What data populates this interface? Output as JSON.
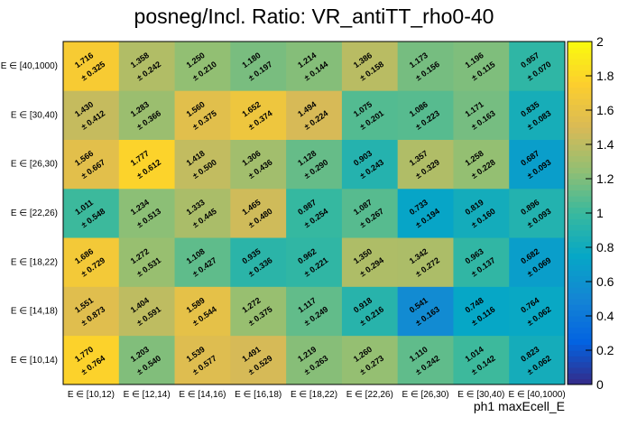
{
  "chart_data": {
    "type": "heatmap",
    "title": "posneg/Incl. Ratio: VR_antiTT_rho0-40",
    "xlabel": "ph1 maxEcell_E",
    "ylabel": "",
    "x_categories": [
      "E ∈ [10,12)",
      "E ∈ [12,14)",
      "E ∈ [14,16)",
      "E ∈ [16,18)",
      "E ∈ [18,22)",
      "E ∈ [22,26)",
      "E ∈ [26,30)",
      "E ∈ [30,40)",
      "E ∈ [40,1000)"
    ],
    "y_categories": [
      "E ∈ [10,14)",
      "E ∈ [14,18)",
      "E ∈ [18,22)",
      "E ∈ [22,26)",
      "E ∈ [26,30)",
      "E ∈ [30,40)",
      "E ∈ [40,1000)"
    ],
    "values": [
      [
        1.77,
        1.203,
        1.539,
        1.491,
        1.219,
        1.26,
        1.11,
        1.014,
        0.823
      ],
      [
        1.551,
        1.404,
        1.589,
        1.272,
        1.117,
        0.918,
        0.541,
        0.748,
        0.764
      ],
      [
        1.686,
        1.272,
        1.108,
        0.935,
        0.962,
        1.35,
        1.342,
        0.963,
        0.682
      ],
      [
        1.011,
        1.234,
        1.333,
        1.465,
        0.987,
        1.087,
        0.733,
        0.819,
        0.896
      ],
      [
        1.566,
        1.777,
        1.418,
        1.306,
        1.128,
        0.903,
        1.357,
        1.258,
        0.687
      ],
      [
        1.43,
        1.283,
        1.56,
        1.652,
        1.494,
        1.075,
        1.086,
        1.171,
        0.835
      ],
      [
        1.716,
        1.358,
        1.25,
        1.18,
        1.214,
        1.386,
        1.173,
        1.196,
        0.957
      ]
    ],
    "errors": [
      [
        0.764,
        0.54,
        0.577,
        0.529,
        0.263,
        0.273,
        0.242,
        0.142,
        0.062
      ],
      [
        0.873,
        0.591,
        0.544,
        0.375,
        0.249,
        0.216,
        0.163,
        0.116,
        0.062
      ],
      [
        0.729,
        0.531,
        0.427,
        0.336,
        0.221,
        0.294,
        0.272,
        0.137,
        0.069
      ],
      [
        0.548,
        0.513,
        0.445,
        0.48,
        0.254,
        0.267,
        0.194,
        0.16,
        0.093
      ],
      [
        0.667,
        0.612,
        0.5,
        0.436,
        0.29,
        0.243,
        0.329,
        0.228,
        0.093
      ],
      [
        0.412,
        0.366,
        0.375,
        0.374,
        0.224,
        0.201,
        0.223,
        0.163,
        0.083
      ],
      [
        0.325,
        0.242,
        0.21,
        0.197,
        0.144,
        0.158,
        0.156,
        0.115,
        0.07
      ]
    ],
    "zlim": [
      0,
      2
    ],
    "z_ticks": [
      "0",
      "0.2",
      "0.4",
      "0.6",
      "0.8",
      "1",
      "1.2",
      "1.4",
      "1.6",
      "1.8",
      "2"
    ],
    "colormap": [
      "#352a87",
      "#0363e1",
      "#1485d4",
      "#06a7c6",
      "#38b99e",
      "#92bf73",
      "#d9ba56",
      "#fcce2e",
      "#f9fb0e"
    ],
    "legend": "right",
    "grid": false
  }
}
